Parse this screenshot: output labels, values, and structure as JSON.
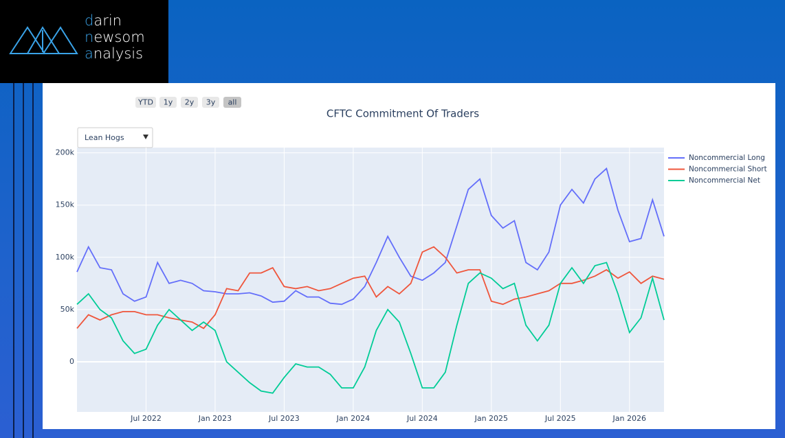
{
  "logo": {
    "lines": [
      "darin",
      "newsom",
      "analysis"
    ]
  },
  "controls": {
    "range_buttons": [
      "YTD",
      "1y",
      "2y",
      "3y",
      "all"
    ],
    "active_button": "all",
    "dropdown": "Lean Hogs"
  },
  "chart_data": {
    "type": "line",
    "title": "CFTC Commitment Of Traders",
    "x": [
      "2022-01",
      "2022-02",
      "2022-03",
      "2022-04",
      "2022-05",
      "2022-06",
      "2022-07",
      "2022-08",
      "2022-09",
      "2022-10",
      "2022-11",
      "2022-12",
      "2023-01",
      "2023-02",
      "2023-03",
      "2023-04",
      "2023-05",
      "2023-06",
      "2023-07",
      "2023-08",
      "2023-09",
      "2023-10",
      "2023-11",
      "2023-12",
      "2024-01",
      "2024-02",
      "2024-03",
      "2024-04",
      "2024-05",
      "2024-06",
      "2024-07",
      "2024-08",
      "2024-09",
      "2024-10",
      "2024-11",
      "2024-12",
      "2025-01",
      "2025-02",
      "2025-03",
      "2025-04",
      "2025-05",
      "2025-06",
      "2025-07",
      "2025-08",
      "2025-09",
      "2025-10",
      "2025-11",
      "2025-12",
      "2026-01",
      "2026-02",
      "2026-03",
      "2026-04"
    ],
    "series": [
      {
        "name": "Noncommercial Long",
        "color": "#636efa",
        "values": [
          86000,
          110000,
          90000,
          88000,
          65000,
          58000,
          62000,
          95000,
          75000,
          78000,
          75000,
          68000,
          67000,
          65000,
          65000,
          66000,
          63000,
          57000,
          58000,
          68000,
          62000,
          62000,
          56000,
          55000,
          60000,
          72000,
          95000,
          120000,
          100000,
          82000,
          78000,
          85000,
          95000,
          130000,
          165000,
          175000,
          140000,
          128000,
          135000,
          95000,
          88000,
          105000,
          150000,
          165000,
          152000,
          175000,
          185000,
          145000,
          115000,
          118000,
          155000,
          120000
        ]
      },
      {
        "name": "Noncommercial Short",
        "color": "#ef553b",
        "values": [
          32000,
          45000,
          40000,
          45000,
          48000,
          48000,
          45000,
          45000,
          42000,
          40000,
          38000,
          32000,
          45000,
          70000,
          68000,
          85000,
          85000,
          90000,
          72000,
          70000,
          72000,
          68000,
          70000,
          75000,
          80000,
          82000,
          62000,
          72000,
          65000,
          75000,
          105000,
          110000,
          100000,
          85000,
          88000,
          88000,
          58000,
          55000,
          60000,
          62000,
          65000,
          68000,
          75000,
          75000,
          78000,
          82000,
          88000,
          80000,
          86000,
          75000,
          82000,
          79000
        ]
      },
      {
        "name": "Noncommercial Net",
        "color": "#00cc96",
        "values": [
          55000,
          65000,
          50000,
          42000,
          20000,
          8000,
          12000,
          35000,
          50000,
          40000,
          30000,
          38000,
          30000,
          0,
          -10000,
          -20000,
          -28000,
          -30000,
          -15000,
          -2000,
          -5000,
          -5000,
          -12000,
          -25000,
          -25000,
          -5000,
          30000,
          50000,
          38000,
          8000,
          -25000,
          -25000,
          -10000,
          35000,
          75000,
          85000,
          80000,
          70000,
          75000,
          35000,
          20000,
          35000,
          75000,
          90000,
          75000,
          92000,
          95000,
          65000,
          28000,
          42000,
          80000,
          40000
        ]
      }
    ],
    "xlim": [
      "2022-01",
      "2026-04"
    ],
    "xticks": [
      {
        "value": "2022-07",
        "label": "Jul 2022"
      },
      {
        "value": "2023-01",
        "label": "Jan 2023"
      },
      {
        "value": "2023-07",
        "label": "Jul 2023"
      },
      {
        "value": "2024-01",
        "label": "Jan 2024"
      },
      {
        "value": "2024-07",
        "label": "Jul 2024"
      },
      {
        "value": "2025-01",
        "label": "Jan 2025"
      },
      {
        "value": "2025-07",
        "label": "Jul 2025"
      },
      {
        "value": "2026-01",
        "label": "Jan 2026"
      }
    ],
    "ylim": [
      -48000,
      205000
    ],
    "yticks": [
      0,
      {
        "value": 50000,
        "label": "50k"
      },
      {
        "value": 100000,
        "label": "100k"
      },
      {
        "value": 150000,
        "label": "150k"
      },
      {
        "value": 200000,
        "label": "200k"
      }
    ],
    "grid": true,
    "legend": "right"
  }
}
